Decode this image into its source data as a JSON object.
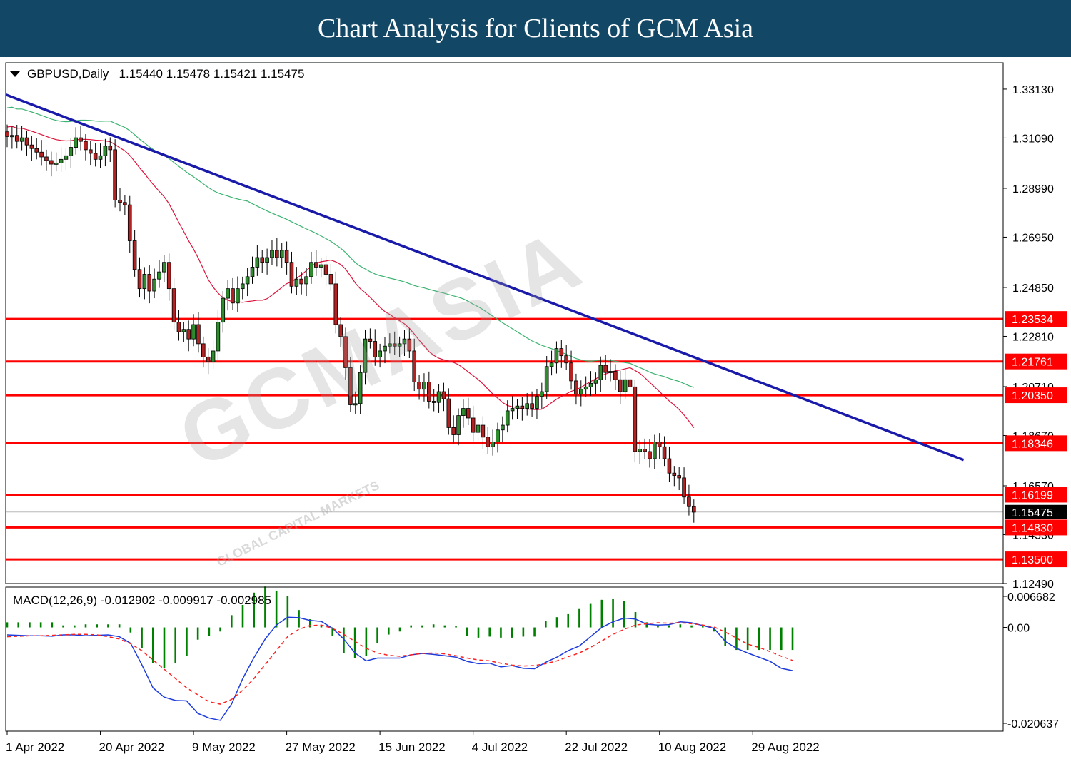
{
  "banner": {
    "title": "Chart Analysis for Clients of GCM Asia"
  },
  "chart_header": {
    "symbol": "GBPUSD,Daily",
    "ohlc": "1.15440 1.15478 1.15421 1.15475"
  },
  "macd_header": {
    "label": "MACD(12,26,9)",
    "values": "-0.012902 -0.009917 -0.002985"
  },
  "watermark": {
    "brand": "GCMASIA",
    "tagline": "GLOBAL CAPITAL MARKETS"
  },
  "colors": {
    "banner": "#124766",
    "bull": "#2e8b2e",
    "bear": "#b22222",
    "support_line": "#ff0000",
    "trend_line": "#1a1aaa",
    "ma_fast": "#dc143c",
    "ma_slow": "#3cb371",
    "macd_line": "#1e3cdc",
    "signal_line": "#ff2020",
    "histogram": "#008000"
  },
  "chart_data": [
    {
      "type": "candlestick",
      "title": "GBPUSD,Daily",
      "ylim": [
        1.1249,
        1.3423
      ],
      "y_ticks": [
        "1.33130",
        "1.31090",
        "1.28990",
        "1.26950",
        "1.24850",
        "1.22810",
        "1.20710",
        "1.18670",
        "1.16570",
        "1.14530",
        "1.12490"
      ],
      "x_ticks": [
        "1 Apr 2022",
        "20 Apr 2022",
        "9 May 2022",
        "27 May 2022",
        "15 Jun 2022",
        "4 Jul 2022",
        "22 Jul 2022",
        "10 Aug 2022",
        "29 Aug 2022"
      ],
      "x_tick_index": [
        0,
        19,
        38,
        57,
        76,
        95,
        114,
        133,
        152
      ],
      "current_price": "1.15475",
      "horizontal_levels": [
        "1.23534",
        "1.21761",
        "1.20350",
        "1.18346",
        "1.16199",
        "1.14830",
        "1.13500"
      ],
      "trendline": {
        "start": {
          "index": 0,
          "price": 1.329
        },
        "end": {
          "index": 195,
          "price": 1.1765
        }
      },
      "closes": [
        1.3115,
        1.312,
        1.3095,
        1.311,
        1.308,
        1.3065,
        1.305,
        1.303,
        1.3015,
        1.3,
        1.3005,
        1.302,
        1.3035,
        1.307,
        1.311,
        1.3095,
        1.306,
        1.3045,
        1.302,
        1.3035,
        1.3075,
        1.306,
        1.285,
        1.284,
        1.283,
        1.268,
        1.256,
        1.248,
        1.254,
        1.247,
        1.252,
        1.255,
        1.259,
        1.248,
        1.234,
        1.23,
        1.231,
        1.227,
        1.233,
        1.225,
        1.2195,
        1.2175,
        1.222,
        1.234,
        1.244,
        1.248,
        1.242,
        1.248,
        1.25,
        1.253,
        1.257,
        1.261,
        1.259,
        1.261,
        1.264,
        1.261,
        1.264,
        1.259,
        1.249,
        1.252,
        1.25,
        1.253,
        1.259,
        1.257,
        1.258,
        1.254,
        1.25,
        1.233,
        1.228,
        1.215,
        1.1995,
        1.2,
        1.213,
        1.227,
        1.226,
        1.2195,
        1.222,
        1.224,
        1.225,
        1.224,
        1.225,
        1.227,
        1.222,
        1.209,
        1.206,
        1.209,
        1.201,
        1.2005,
        1.205,
        1.202,
        1.19,
        1.187,
        1.195,
        1.198,
        1.194,
        1.188,
        1.191,
        1.186,
        1.182,
        1.184,
        1.189,
        1.191,
        1.197,
        1.198,
        1.199,
        1.198,
        1.2,
        1.198,
        1.203,
        1.205,
        1.2155,
        1.217,
        1.223,
        1.22,
        1.217,
        1.2095,
        1.204,
        1.206,
        1.207,
        1.2085,
        1.21,
        1.216,
        1.213,
        1.2135,
        1.21,
        1.205,
        1.21,
        1.207,
        1.18,
        1.181,
        1.18,
        1.177,
        1.184,
        1.182,
        1.177,
        1.171,
        1.17,
        1.169,
        1.161,
        1.157,
        1.1547
      ]
    },
    {
      "type": "line",
      "title": "MACD(12,26,9)",
      "ylim": [
        -0.020637,
        0.006682
      ],
      "y_ticks": [
        "0.006682",
        "0.00",
        "-0.020637"
      ],
      "series": [
        {
          "name": "MACD",
          "values": [
            -0.0016,
            -0.0017,
            -0.0018,
            -0.0018,
            -0.0019,
            -0.0016,
            -0.0016,
            -0.0018,
            -0.0017,
            -0.0016,
            -0.002,
            -0.0034,
            -0.008,
            -0.013,
            -0.015,
            -0.0157,
            -0.0158,
            -0.0185,
            -0.0195,
            -0.02,
            -0.0165,
            -0.011,
            -0.0065,
            -0.0025,
            0.0005,
            0.0022,
            0.0021,
            0.0015,
            0.0013,
            -0.0002,
            -0.0025,
            -0.0055,
            -0.0072,
            -0.0066,
            -0.0066,
            -0.0066,
            -0.0059,
            -0.0056,
            -0.0058,
            -0.0061,
            -0.0064,
            -0.0073,
            -0.0078,
            -0.0077,
            -0.0085,
            -0.0082,
            -0.0088,
            -0.0089,
            -0.0075,
            -0.0064,
            -0.005,
            -0.004,
            -0.002,
            0.0,
            0.0012,
            0.002,
            0.0018,
            0.0007,
            0.0005,
            0.0006,
            0.0012,
            0.001,
            0.0004,
            -0.0002,
            -0.003,
            -0.0045,
            -0.0055,
            -0.0064,
            -0.0073,
            -0.0088,
            -0.0093
          ]
        },
        {
          "name": "Signal",
          "values": [
            -0.002,
            -0.0019,
            -0.0018,
            -0.0018,
            -0.0017,
            -0.0016,
            -0.0015,
            -0.0015,
            -0.0016,
            -0.002,
            -0.0025,
            -0.0035,
            -0.005,
            -0.007,
            -0.009,
            -0.011,
            -0.013,
            -0.0145,
            -0.016,
            -0.0165,
            -0.0155,
            -0.0135,
            -0.011,
            -0.008,
            -0.005,
            -0.002,
            -0.0004,
            0.0004,
            0.0005,
            -0.0002,
            -0.0015,
            -0.003,
            -0.0045,
            -0.0055,
            -0.006,
            -0.0062,
            -0.0059,
            -0.0056,
            -0.0055,
            -0.0057,
            -0.0061,
            -0.0066,
            -0.007,
            -0.0072,
            -0.0077,
            -0.0081,
            -0.0083,
            -0.0082,
            -0.0078,
            -0.0072,
            -0.0063,
            -0.0055,
            -0.0043,
            -0.0029,
            -0.0015,
            -0.0004,
            0.0005,
            0.0008,
            0.001,
            0.0009,
            0.001,
            0.0008,
            0.0005,
            0.0001,
            -0.001,
            -0.0023,
            -0.0036,
            -0.0043,
            -0.0052,
            -0.0062,
            -0.0071
          ]
        },
        {
          "name": "Histogram",
          "values": [
            0.0005,
            0.0005,
            0.0005,
            0.0005,
            0.0005,
            0.0002,
            0.0002,
            0.0003,
            0.0003,
            0.0003,
            0.0003,
            -0.0005,
            -0.002,
            -0.0035,
            -0.004,
            -0.0035,
            -0.0028,
            -0.0012,
            -0.0008,
            -0.0004,
            0.0012,
            0.0022,
            0.0034,
            0.004,
            0.0036,
            0.0031,
            0.0017,
            0.0008,
            0.0002,
            -0.0008,
            -0.0025,
            -0.003,
            -0.0028,
            -0.0015,
            -0.0007,
            -0.0004,
            0.0002,
            0.0002,
            0.0003,
            0.0002,
            0.0001,
            -0.0008,
            -0.001,
            -0.0009,
            -0.001,
            -0.001,
            -0.0009,
            -0.0009,
            0.0006,
            0.001,
            0.0013,
            0.0018,
            0.0023,
            0.0027,
            0.0028,
            0.0026,
            0.0015,
            0.0005,
            0.0002,
            0.0002,
            0.0003,
            0.0002,
            0.0001,
            -0.0004,
            -0.0018,
            -0.0022,
            -0.0022,
            -0.0022,
            -0.0022,
            -0.0022,
            -0.0022
          ]
        }
      ]
    }
  ]
}
